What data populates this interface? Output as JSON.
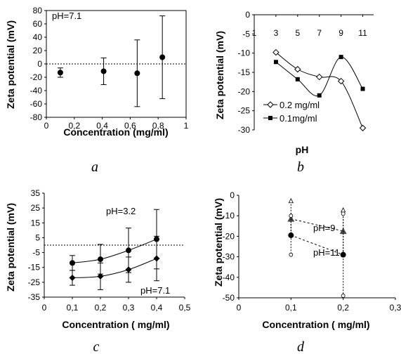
{
  "chart_data": [
    {
      "id": "a",
      "type": "scatter",
      "panel_label": "a",
      "title": "",
      "xlabel": "Concentration (mg/ml)",
      "ylabel": "Zeta potential (mV)",
      "xlim": [
        0,
        1
      ],
      "ylim": [
        -80,
        80
      ],
      "xticks": [
        0,
        0.2,
        0.4,
        0.6,
        0.8,
        1
      ],
      "xtick_labels": [
        "0",
        "0,2",
        "0,4",
        "0,6",
        "0,8",
        "1"
      ],
      "yticks": [
        80,
        60,
        40,
        20,
        0,
        -20,
        -40,
        -60,
        -80
      ],
      "ytick_labels": [
        "80",
        "60",
        "40",
        "20",
        "0",
        "-20",
        "-40",
        "-60",
        "-80"
      ],
      "grid": false,
      "ref_line_y": 0,
      "annotations": [
        {
          "text": "pH=7.1",
          "x": 0.04,
          "y": 68
        }
      ],
      "series": [
        {
          "marker": "filled-circle",
          "color": "#000000",
          "x": [
            0.1,
            0.41,
            0.65,
            0.83
          ],
          "y": [
            -13,
            -11,
            -14,
            10
          ],
          "err": [
            7,
            20,
            50,
            62
          ]
        }
      ]
    },
    {
      "id": "b",
      "type": "line",
      "panel_label": "b",
      "title": "",
      "xlabel": "pH",
      "ylabel": "Zeta potential (mV)",
      "xlim": [
        1,
        12
      ],
      "ylim": [
        -30,
        0
      ],
      "xaxis_position": "top",
      "xticks": [
        1,
        3,
        5,
        7,
        9,
        11
      ],
      "xtick_labels": [
        "1",
        "3",
        "5",
        "7",
        "9",
        "11"
      ],
      "yticks": [
        0,
        -5,
        -10,
        -15,
        -20,
        -25,
        -30
      ],
      "ytick_labels": [
        "0",
        "-5",
        "-10",
        "-15",
        "-20",
        "-25",
        "-30"
      ],
      "grid": false,
      "legend": "bottom-left",
      "series": [
        {
          "name": "0.2 mg/ml",
          "marker": "open-diamond",
          "color": "#000000",
          "x": [
            3,
            5,
            7,
            9,
            11
          ],
          "y": [
            -9.8,
            -14.2,
            -16.2,
            -17.3,
            -29.5
          ]
        },
        {
          "name": "0.1mg/ml",
          "marker": "filled-square",
          "color": "#000000",
          "x": [
            3,
            5,
            7,
            9,
            11
          ],
          "y": [
            -12.3,
            -16.8,
            -21,
            -11,
            -19.3
          ]
        }
      ]
    },
    {
      "id": "c",
      "type": "line",
      "panel_label": "c",
      "title": "",
      "xlabel": "Concentration ( mg/ml)",
      "ylabel": "Zeta potential (mV)",
      "xlim": [
        0,
        0.5
      ],
      "ylim": [
        -35,
        35
      ],
      "xticks": [
        0,
        0.1,
        0.2,
        0.3,
        0.4,
        0.5
      ],
      "xtick_labels": [
        "0",
        "0,1",
        "0,2",
        "0,3",
        "0,4",
        "0,5"
      ],
      "yticks": [
        35,
        25,
        15,
        5,
        -5,
        -15,
        -25,
        -35
      ],
      "ytick_labels": [
        "35",
        "25",
        "15",
        "5",
        "-5",
        "-15",
        "-25",
        "-35"
      ],
      "grid": false,
      "ref_line_y": 0,
      "series": [
        {
          "name": "pH=3.2",
          "marker": "filled-circle",
          "color": "#000000",
          "x": [
            0.1,
            0.2,
            0.3,
            0.4
          ],
          "y": [
            -12,
            -9.5,
            -3.5,
            4
          ],
          "err": [
            5,
            10,
            15,
            20
          ]
        },
        {
          "name": "pH=7.1",
          "marker": "filled-diamond",
          "color": "#000000",
          "x": [
            0.1,
            0.2,
            0.3,
            0.4
          ],
          "y": [
            -22,
            -21,
            -16.5,
            -9
          ],
          "err": [
            5,
            9,
            8.5,
            15
          ]
        }
      ]
    },
    {
      "id": "d",
      "type": "scatter",
      "panel_label": "d",
      "title": "",
      "xlabel": "Concentration ( mg/ml)",
      "ylabel": "Zeta potential (mV)",
      "xlim": [
        0,
        0.3
      ],
      "ylim": [
        -50,
        0
      ],
      "xticks": [
        0,
        0.1,
        0.2,
        0.3
      ],
      "xtick_labels": [
        "0",
        "0,1",
        "0,2",
        "0,3"
      ],
      "yticks": [
        0,
        -10,
        -20,
        -30,
        -40,
        -50
      ],
      "ytick_labels": [
        "0",
        "-10",
        "-20",
        "-30",
        "-40",
        "-50"
      ],
      "grid": false,
      "series": [
        {
          "name": "pH=9",
          "marker": "filled-triangle",
          "color": "#444444",
          "x": [
            0.1,
            0.2
          ],
          "y": [
            -11.5,
            -17.5
          ],
          "lo": [
            -19.5,
            -29
          ],
          "hi": [
            -3,
            -7.5
          ]
        },
        {
          "name": "pH=11",
          "marker": "filled-circle",
          "color": "#000000",
          "x": [
            0.1,
            0.2
          ],
          "y": [
            -19.5,
            -29
          ],
          "lo": [
            -29,
            -49
          ],
          "hi": [
            -10,
            -9
          ]
        }
      ]
    }
  ]
}
